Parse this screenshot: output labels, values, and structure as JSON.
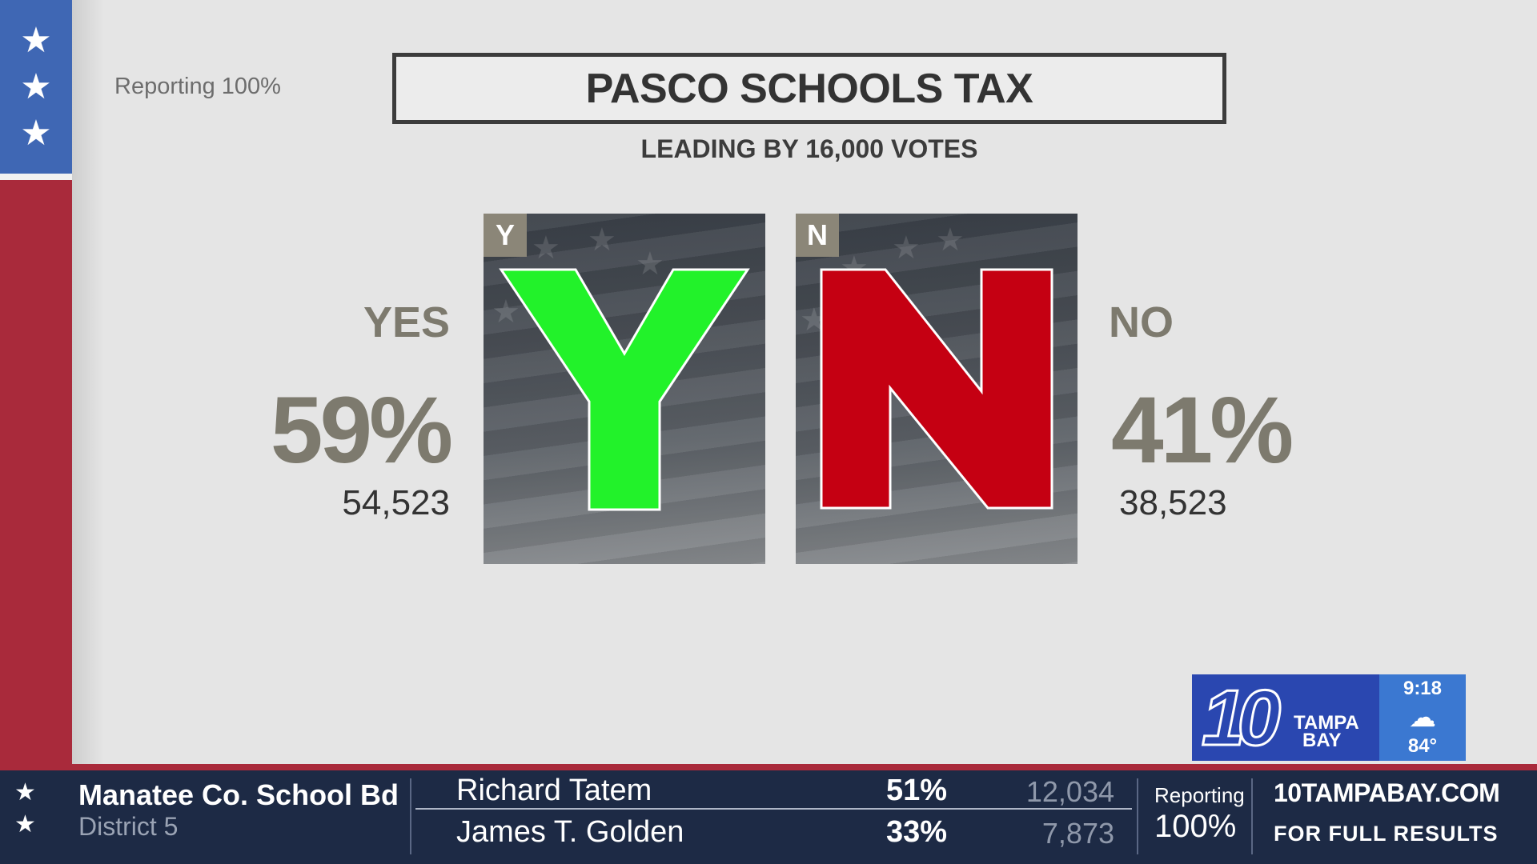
{
  "reporting_top": "Reporting 100%",
  "title": "PASCO SCHOOLS TAX",
  "subtitle": "LEADING BY 16,000 VOTES",
  "yes": {
    "label": "YES",
    "percent": "59%",
    "votes": "54,523",
    "tag": "Y",
    "letter": "Y",
    "color": "#22f22a"
  },
  "no": {
    "label": "NO",
    "percent": "41%",
    "votes": "38,523",
    "tag": "N",
    "letter": "N",
    "color": "#c50012"
  },
  "bug": {
    "number": "10",
    "line1": "TAMPA",
    "line2": "BAY",
    "time": "9:18",
    "weather_icon": "partly-cloudy-night-icon",
    "temp": "84°"
  },
  "ticker": {
    "race": "Manatee Co. School Bd",
    "district": "District 5",
    "candidates": [
      {
        "name": "Richard Tatem",
        "percent": "51%",
        "votes": "12,034"
      },
      {
        "name": "James T. Golden",
        "percent": "33%",
        "votes": "7,873"
      }
    ],
    "reporting_label": "Reporting",
    "reporting_value": "100%",
    "site": "10TAMPABAY.COM",
    "cta": "FOR FULL RESULTS"
  }
}
